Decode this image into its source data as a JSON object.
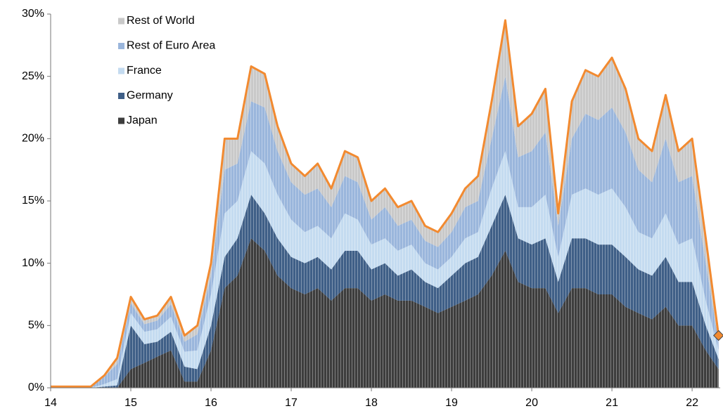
{
  "chart_data": {
    "type": "stacked_area",
    "x": [
      14,
      14.17,
      14.33,
      14.5,
      14.67,
      14.83,
      15,
      15.17,
      15.33,
      15.5,
      15.67,
      15.83,
      16,
      16.17,
      16.33,
      16.5,
      16.67,
      16.83,
      17,
      17.17,
      17.33,
      17.5,
      17.67,
      17.83,
      18,
      18.17,
      18.33,
      18.5,
      18.67,
      18.83,
      19,
      19.17,
      19.33,
      19.5,
      19.67,
      19.83,
      20,
      20.17,
      20.33,
      20.5,
      20.67,
      20.83,
      21,
      21.17,
      21.33,
      21.5,
      21.67,
      21.83,
      22,
      22.17,
      22.33
    ],
    "series": [
      {
        "name": "Japan",
        "color": "#3d3d3d",
        "values": [
          0,
          0,
          0,
          0,
          0,
          0,
          1.5,
          2,
          2.5,
          3,
          0.5,
          0.5,
          3,
          8,
          9,
          12,
          11,
          9,
          8,
          7.5,
          8,
          7,
          8,
          8,
          7,
          7.5,
          7,
          7,
          6.5,
          6,
          6.5,
          7,
          7.5,
          9,
          11,
          8.5,
          8,
          8,
          6,
          8,
          8,
          7.5,
          7.5,
          6.5,
          6,
          5.5,
          6.5,
          5,
          5,
          3,
          1.5
        ]
      },
      {
        "name": "Germany",
        "color": "#3f5f87",
        "values": [
          0,
          0,
          0,
          0,
          0.1,
          0.2,
          3.5,
          1.5,
          1.2,
          1.5,
          1.2,
          1,
          2,
          2.5,
          3,
          3.5,
          3,
          3,
          2.5,
          2.5,
          2.5,
          2.5,
          3,
          3,
          2.5,
          2.5,
          2,
          2.5,
          2,
          2,
          2.5,
          3,
          3,
          4,
          4.5,
          3.5,
          3.5,
          4,
          2.5,
          4,
          4,
          4,
          4,
          4,
          3.5,
          3.5,
          4,
          3.5,
          3.5,
          2,
          0.8
        ]
      },
      {
        "name": "France",
        "color": "#c4dbf0",
        "values": [
          0,
          0,
          0,
          0,
          0.2,
          0.5,
          1,
          1,
          1,
          1.2,
          1.2,
          1.5,
          2.5,
          3.5,
          3,
          3.5,
          4,
          3.5,
          3,
          2.5,
          2.5,
          2.5,
          3,
          2.5,
          2,
          2,
          2,
          2,
          1.5,
          1.5,
          1.5,
          2,
          2,
          3,
          3.5,
          2.5,
          3,
          3.5,
          2,
          3.5,
          4,
          4,
          4.5,
          4,
          3,
          3,
          3.5,
          3,
          3.5,
          2,
          0.7
        ]
      },
      {
        "name": "Rest of Euro Area",
        "color": "#9ab6dc",
        "values": [
          0,
          0,
          0,
          0,
          0.6,
          1.2,
          0.8,
          0.6,
          0.7,
          1,
          0.8,
          1.3,
          1.5,
          3.5,
          3,
          4,
          4.5,
          3.5,
          3,
          3,
          3,
          2.5,
          3,
          3,
          2,
          2.5,
          2,
          2,
          1.8,
          1.8,
          2,
          2.5,
          2.5,
          4,
          6,
          4,
          4.5,
          5,
          2.5,
          4.5,
          6,
          6,
          6.5,
          6,
          5,
          4.5,
          6,
          5,
          5,
          3,
          0.7
        ]
      },
      {
        "name": "Rest of World",
        "color": "#c9c9c9",
        "values": [
          0.1,
          0.1,
          0.1,
          0.1,
          0.1,
          0.5,
          0.5,
          0.4,
          0.4,
          0.6,
          0.5,
          0.7,
          1,
          2.5,
          2,
          2.8,
          2.7,
          2,
          1.5,
          1.5,
          2,
          1.5,
          2,
          2,
          1.5,
          1.5,
          1.5,
          1.5,
          1.2,
          1.2,
          1.5,
          1.5,
          2,
          3,
          4.5,
          2.5,
          3,
          3.5,
          1,
          3,
          3.5,
          3.5,
          4,
          3.5,
          2.5,
          2.5,
          3.5,
          2.5,
          3,
          2,
          0.5
        ]
      }
    ],
    "total_color": "#f28a30",
    "xlim": [
      14,
      22.35
    ],
    "xticks": [
      14,
      15,
      16,
      17,
      18,
      19,
      20,
      21,
      22
    ],
    "ylim": [
      0,
      30
    ],
    "yticks": [
      {
        "value": 0,
        "label": "0%"
      },
      {
        "value": 5,
        "label": "5%"
      },
      {
        "value": 10,
        "label": "10%"
      },
      {
        "value": 15,
        "label": "15%"
      },
      {
        "value": 20,
        "label": "20%"
      },
      {
        "value": 25,
        "label": "25%"
      },
      {
        "value": 30,
        "label": "30%"
      }
    ],
    "legend": "upper left"
  }
}
